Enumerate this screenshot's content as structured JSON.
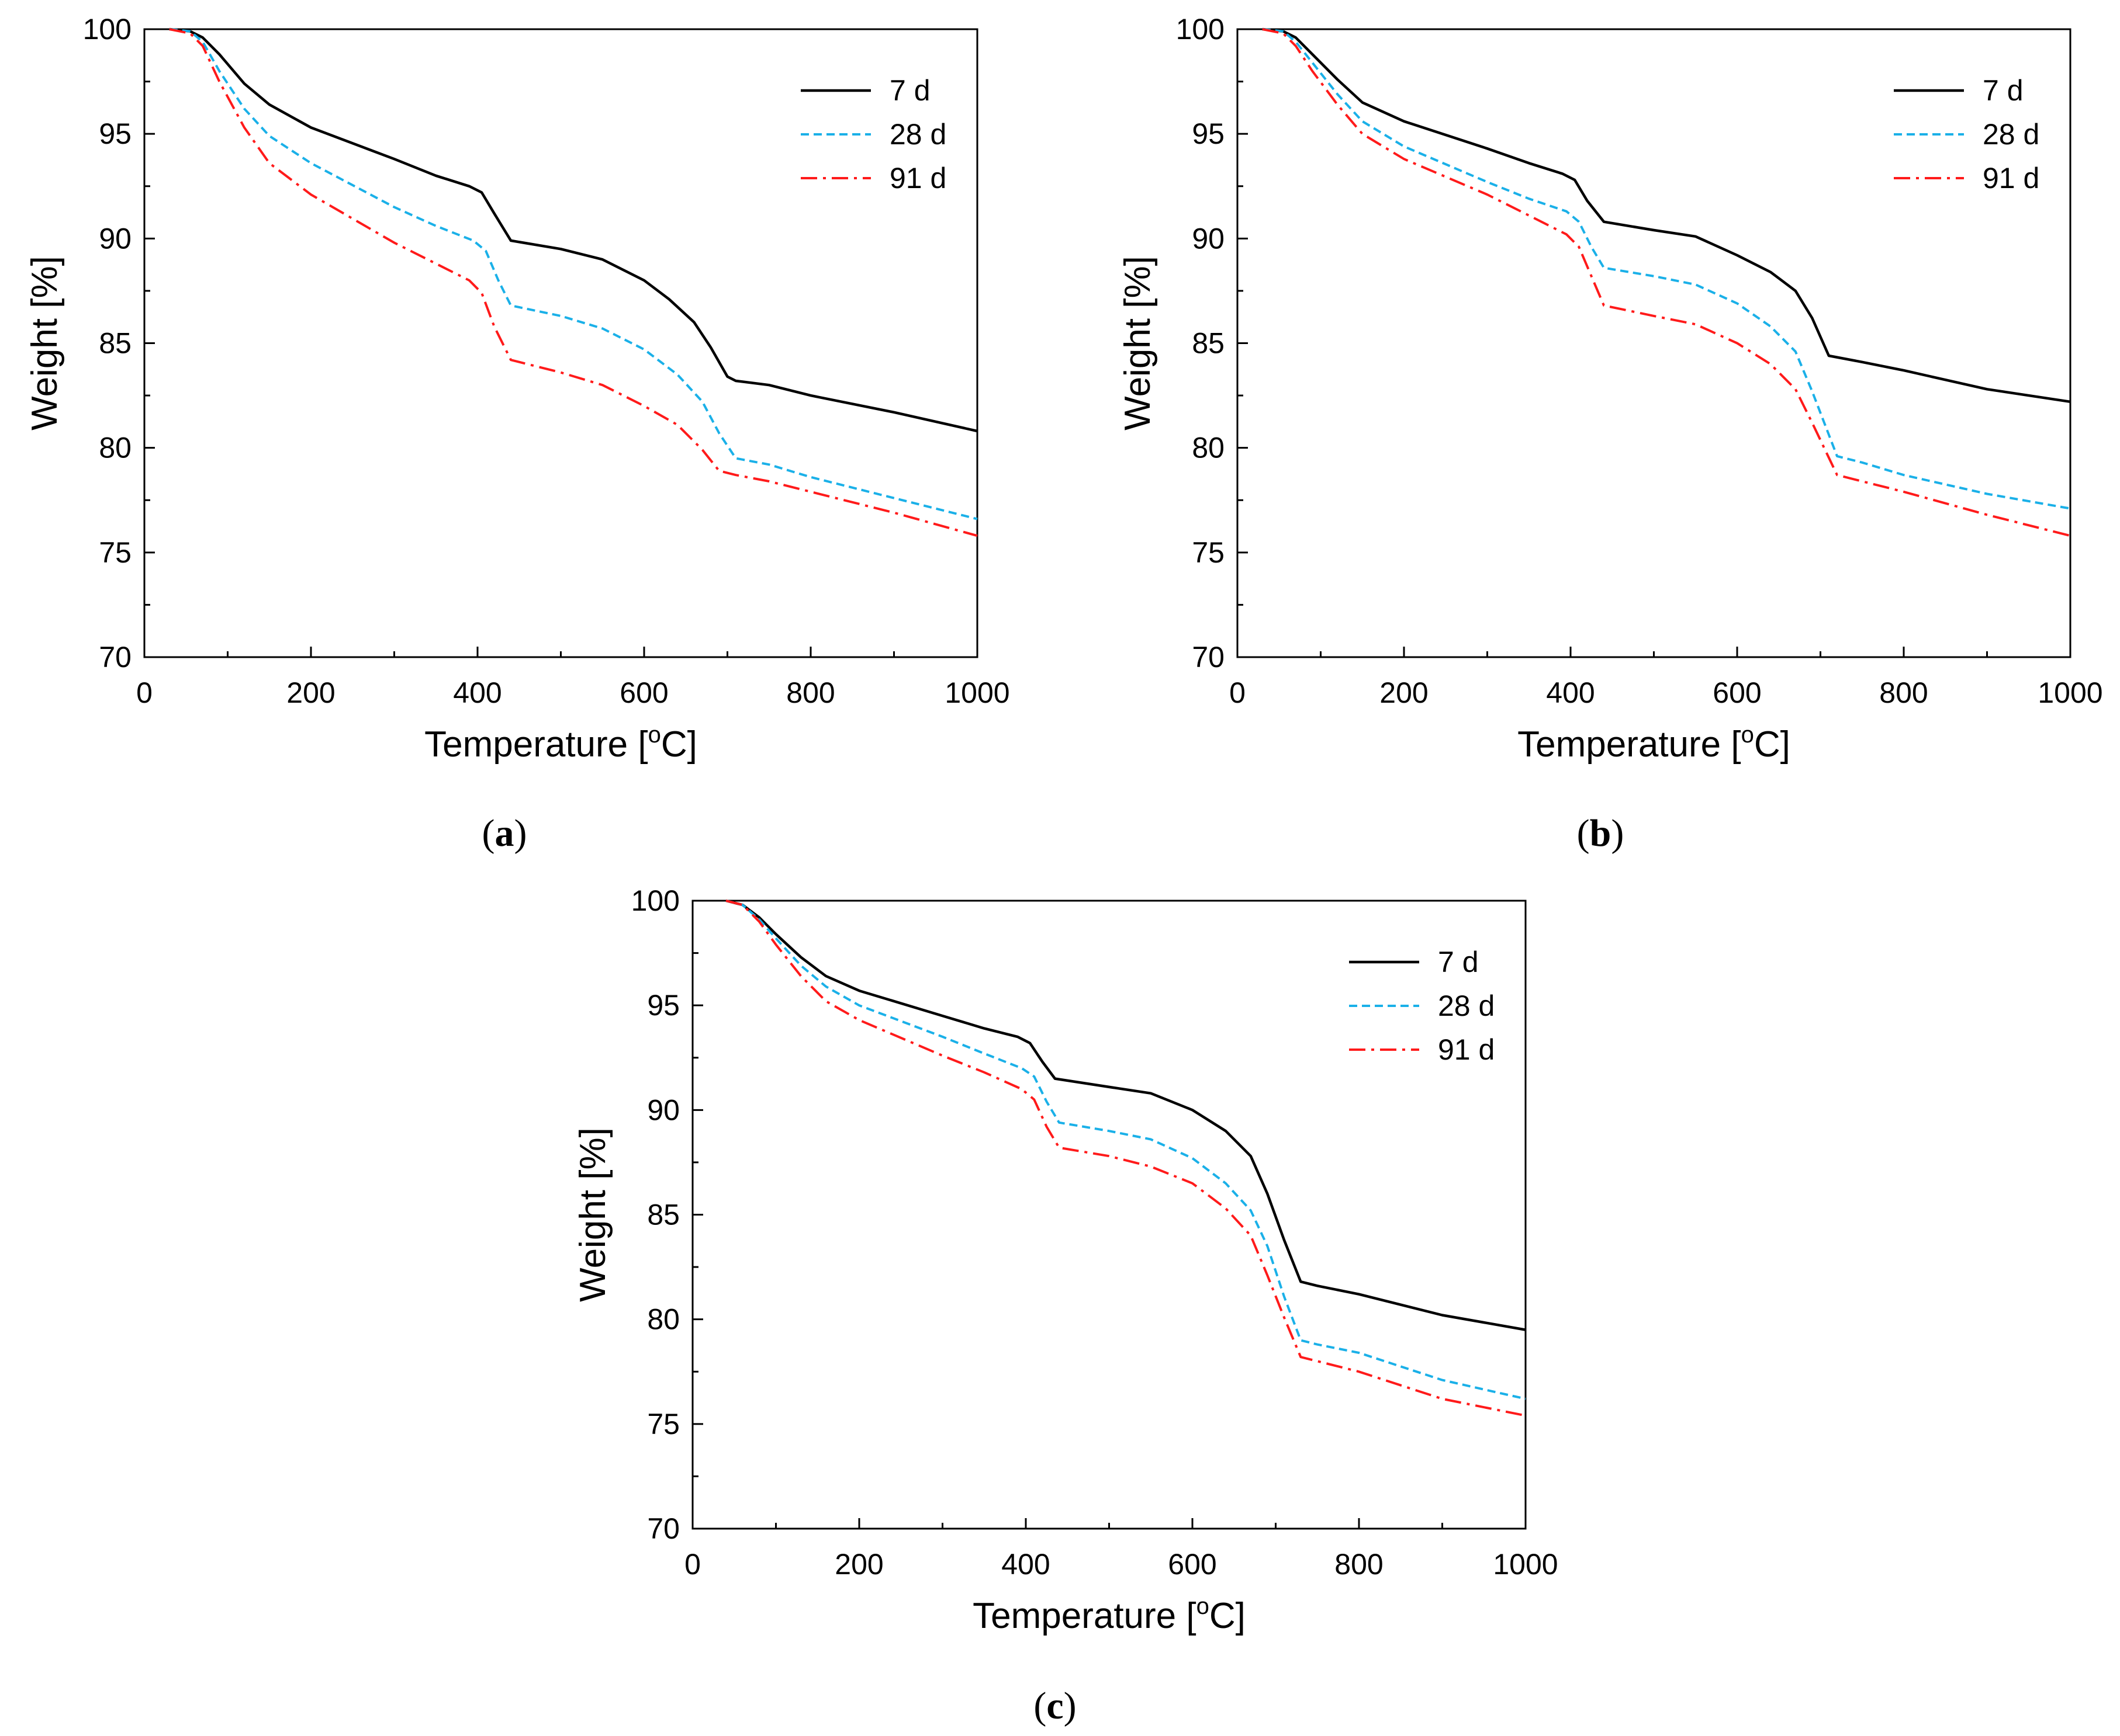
{
  "figure": {
    "panels": [
      {
        "caption_open": "(",
        "caption_letter": "a",
        "caption_close": ")"
      },
      {
        "caption_open": "(",
        "caption_letter": "b",
        "caption_close": ")"
      },
      {
        "caption_open": "(",
        "caption_letter": "c",
        "caption_close": ")"
      }
    ]
  },
  "chart_data": [
    {
      "type": "line",
      "panel": "a",
      "title": "",
      "xlabel_main": "Temperature [",
      "xlabel_sup": "o",
      "xlabel_end": "C]",
      "ylabel": "Weight [%]",
      "xlim": [
        0,
        1000
      ],
      "ylim": [
        70,
        100
      ],
      "xticks": [
        0,
        200,
        400,
        600,
        800,
        1000
      ],
      "yticks": [
        70,
        75,
        80,
        85,
        90,
        95,
        100
      ],
      "legend_position": "top-right",
      "series": [
        {
          "name": "7 d",
          "color": "#000000",
          "style": "solid",
          "points": [
            [
              30,
              100
            ],
            [
              55,
              99.9
            ],
            [
              70,
              99.6
            ],
            [
              90,
              98.8
            ],
            [
              120,
              97.4
            ],
            [
              150,
              96.4
            ],
            [
              200,
              95.3
            ],
            [
              300,
              93.8
            ],
            [
              350,
              93.0
            ],
            [
              390,
              92.5
            ],
            [
              405,
              92.2
            ],
            [
              420,
              91.2
            ],
            [
              440,
              89.9
            ],
            [
              500,
              89.5
            ],
            [
              550,
              89.0
            ],
            [
              600,
              88.0
            ],
            [
              630,
              87.1
            ],
            [
              660,
              86.0
            ],
            [
              680,
              84.8
            ],
            [
              700,
              83.4
            ],
            [
              710,
              83.2
            ],
            [
              750,
              83.0
            ],
            [
              800,
              82.5
            ],
            [
              900,
              81.7
            ],
            [
              1000,
              80.8
            ]
          ]
        },
        {
          "name": "28 d",
          "color": "#1ab0e8",
          "style": "dashed",
          "points": [
            [
              30,
              100
            ],
            [
              55,
              99.9
            ],
            [
              70,
              99.4
            ],
            [
              90,
              98.0
            ],
            [
              120,
              96.2
            ],
            [
              150,
              94.9
            ],
            [
              200,
              93.6
            ],
            [
              300,
              91.5
            ],
            [
              350,
              90.6
            ],
            [
              395,
              89.9
            ],
            [
              410,
              89.4
            ],
            [
              425,
              88.0
            ],
            [
              440,
              86.8
            ],
            [
              500,
              86.3
            ],
            [
              550,
              85.7
            ],
            [
              600,
              84.7
            ],
            [
              640,
              83.5
            ],
            [
              670,
              82.2
            ],
            [
              690,
              80.7
            ],
            [
              710,
              79.5
            ],
            [
              750,
              79.2
            ],
            [
              800,
              78.6
            ],
            [
              900,
              77.6
            ],
            [
              1000,
              76.6
            ]
          ]
        },
        {
          "name": "91 d",
          "color": "#ff1a1a",
          "style": "dashdot",
          "points": [
            [
              30,
              100
            ],
            [
              55,
              99.8
            ],
            [
              70,
              99.2
            ],
            [
              90,
              97.5
            ],
            [
              120,
              95.3
            ],
            [
              150,
              93.6
            ],
            [
              200,
              92.1
            ],
            [
              300,
              89.8
            ],
            [
              350,
              88.8
            ],
            [
              390,
              88.0
            ],
            [
              405,
              87.4
            ],
            [
              420,
              85.8
            ],
            [
              440,
              84.2
            ],
            [
              500,
              83.6
            ],
            [
              550,
              83.0
            ],
            [
              600,
              82.0
            ],
            [
              640,
              81.1
            ],
            [
              670,
              79.9
            ],
            [
              690,
              78.9
            ],
            [
              710,
              78.7
            ],
            [
              750,
              78.4
            ],
            [
              800,
              77.9
            ],
            [
              900,
              76.9
            ],
            [
              1000,
              75.8
            ]
          ]
        }
      ]
    },
    {
      "type": "line",
      "panel": "b",
      "title": "",
      "xlabel_main": "Temperature [",
      "xlabel_sup": "o",
      "xlabel_end": "C]",
      "ylabel": "Weight [%]",
      "xlim": [
        0,
        1000
      ],
      "ylim": [
        70,
        100
      ],
      "xticks": [
        0,
        200,
        400,
        600,
        800,
        1000
      ],
      "yticks": [
        70,
        75,
        80,
        85,
        90,
        95,
        100
      ],
      "legend_position": "top-right",
      "series": [
        {
          "name": "7 d",
          "color": "#000000",
          "style": "solid",
          "points": [
            [
              30,
              100
            ],
            [
              55,
              99.9
            ],
            [
              70,
              99.6
            ],
            [
              90,
              98.8
            ],
            [
              120,
              97.6
            ],
            [
              150,
              96.5
            ],
            [
              200,
              95.6
            ],
            [
              300,
              94.3
            ],
            [
              350,
              93.6
            ],
            [
              390,
              93.1
            ],
            [
              405,
              92.8
            ],
            [
              420,
              91.8
            ],
            [
              440,
              90.8
            ],
            [
              500,
              90.4
            ],
            [
              550,
              90.1
            ],
            [
              600,
              89.2
            ],
            [
              640,
              88.4
            ],
            [
              670,
              87.5
            ],
            [
              690,
              86.2
            ],
            [
              710,
              84.4
            ],
            [
              750,
              84.1
            ],
            [
              800,
              83.7
            ],
            [
              900,
              82.8
            ],
            [
              1000,
              82.2
            ]
          ]
        },
        {
          "name": "28 d",
          "color": "#1ab0e8",
          "style": "dashed",
          "points": [
            [
              30,
              100
            ],
            [
              55,
              99.9
            ],
            [
              70,
              99.4
            ],
            [
              90,
              98.4
            ],
            [
              120,
              96.9
            ],
            [
              150,
              95.6
            ],
            [
              200,
              94.4
            ],
            [
              300,
              92.7
            ],
            [
              350,
              91.9
            ],
            [
              395,
              91.3
            ],
            [
              410,
              90.8
            ],
            [
              425,
              89.6
            ],
            [
              440,
              88.6
            ],
            [
              500,
              88.2
            ],
            [
              550,
              87.8
            ],
            [
              600,
              86.9
            ],
            [
              640,
              85.8
            ],
            [
              670,
              84.6
            ],
            [
              690,
              82.7
            ],
            [
              720,
              79.6
            ],
            [
              750,
              79.3
            ],
            [
              800,
              78.7
            ],
            [
              900,
              77.8
            ],
            [
              1000,
              77.1
            ]
          ]
        },
        {
          "name": "91 d",
          "color": "#ff1a1a",
          "style": "dashdot",
          "points": [
            [
              30,
              100
            ],
            [
              55,
              99.8
            ],
            [
              70,
              99.2
            ],
            [
              90,
              98.0
            ],
            [
              120,
              96.4
            ],
            [
              150,
              95.0
            ],
            [
              200,
              93.8
            ],
            [
              300,
              92.1
            ],
            [
              350,
              91.1
            ],
            [
              395,
              90.2
            ],
            [
              410,
              89.6
            ],
            [
              425,
              88.2
            ],
            [
              440,
              86.8
            ],
            [
              500,
              86.3
            ],
            [
              550,
              85.9
            ],
            [
              600,
              85.0
            ],
            [
              640,
              84.0
            ],
            [
              670,
              82.8
            ],
            [
              690,
              81.2
            ],
            [
              720,
              78.7
            ],
            [
              750,
              78.4
            ],
            [
              800,
              77.9
            ],
            [
              900,
              76.8
            ],
            [
              1000,
              75.8
            ]
          ]
        }
      ]
    },
    {
      "type": "line",
      "panel": "c",
      "title": "",
      "xlabel_main": "Temperature [",
      "xlabel_sup": "o",
      "xlabel_end": "C]",
      "ylabel": "Weight [%]",
      "xlim": [
        0,
        1000
      ],
      "ylim": [
        70,
        100
      ],
      "xticks": [
        0,
        200,
        400,
        600,
        800,
        1000
      ],
      "yticks": [
        70,
        75,
        80,
        85,
        90,
        95,
        100
      ],
      "legend_position": "top-right",
      "series": [
        {
          "name": "7 d",
          "color": "#000000",
          "style": "solid",
          "points": [
            [
              40,
              100
            ],
            [
              60,
              99.8
            ],
            [
              80,
              99.2
            ],
            [
              100,
              98.4
            ],
            [
              130,
              97.3
            ],
            [
              160,
              96.4
            ],
            [
              200,
              95.7
            ],
            [
              300,
              94.5
            ],
            [
              350,
              93.9
            ],
            [
              390,
              93.5
            ],
            [
              405,
              93.2
            ],
            [
              420,
              92.3
            ],
            [
              435,
              91.5
            ],
            [
              500,
              91.1
            ],
            [
              550,
              90.8
            ],
            [
              600,
              90.0
            ],
            [
              640,
              89.0
            ],
            [
              670,
              87.8
            ],
            [
              690,
              86.0
            ],
            [
              710,
              83.8
            ],
            [
              730,
              81.8
            ],
            [
              750,
              81.6
            ],
            [
              800,
              81.2
            ],
            [
              900,
              80.2
            ],
            [
              1000,
              79.5
            ]
          ]
        },
        {
          "name": "28 d",
          "color": "#1ab0e8",
          "style": "dashed",
          "points": [
            [
              40,
              100
            ],
            [
              60,
              99.8
            ],
            [
              80,
              99.1
            ],
            [
              100,
              98.2
            ],
            [
              130,
              96.9
            ],
            [
              160,
              95.9
            ],
            [
              200,
              95.0
            ],
            [
              300,
              93.5
            ],
            [
              350,
              92.7
            ],
            [
              395,
              92.0
            ],
            [
              410,
              91.6
            ],
            [
              425,
              90.4
            ],
            [
              440,
              89.4
            ],
            [
              500,
              89.0
            ],
            [
              550,
              88.6
            ],
            [
              600,
              87.7
            ],
            [
              640,
              86.5
            ],
            [
              670,
              85.2
            ],
            [
              690,
              83.5
            ],
            [
              710,
              81.1
            ],
            [
              730,
              79.0
            ],
            [
              750,
              78.8
            ],
            [
              800,
              78.4
            ],
            [
              900,
              77.1
            ],
            [
              1000,
              76.2
            ]
          ]
        },
        {
          "name": "91 d",
          "color": "#ff1a1a",
          "style": "dashdot",
          "points": [
            [
              40,
              100
            ],
            [
              60,
              99.8
            ],
            [
              80,
              99.0
            ],
            [
              100,
              97.9
            ],
            [
              130,
              96.4
            ],
            [
              160,
              95.2
            ],
            [
              200,
              94.3
            ],
            [
              300,
              92.6
            ],
            [
              350,
              91.8
            ],
            [
              395,
              91.0
            ],
            [
              410,
              90.5
            ],
            [
              425,
              89.2
            ],
            [
              440,
              88.2
            ],
            [
              500,
              87.8
            ],
            [
              550,
              87.3
            ],
            [
              600,
              86.5
            ],
            [
              640,
              85.3
            ],
            [
              670,
              84.0
            ],
            [
              690,
              82.1
            ],
            [
              710,
              80.1
            ],
            [
              730,
              78.2
            ],
            [
              750,
              78.0
            ],
            [
              800,
              77.5
            ],
            [
              900,
              76.2
            ],
            [
              1000,
              75.4
            ]
          ]
        }
      ]
    }
  ]
}
